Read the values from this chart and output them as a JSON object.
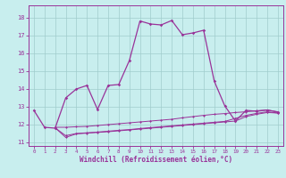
{
  "title": "",
  "xlabel": "Windchill (Refroidissement éolien,°C)",
  "ylabel": "",
  "bg_color": "#c8eeee",
  "grid_color": "#a0cccc",
  "line_color": "#993399",
  "xlim": [
    -0.5,
    23.5
  ],
  "ylim": [
    10.8,
    18.7
  ],
  "xticks": [
    0,
    1,
    2,
    3,
    4,
    5,
    6,
    7,
    8,
    9,
    10,
    11,
    12,
    13,
    14,
    15,
    16,
    17,
    18,
    19,
    20,
    21,
    22,
    23
  ],
  "yticks": [
    11,
    12,
    13,
    14,
    15,
    16,
    17,
    18
  ],
  "line1_x": [
    0,
    1,
    2,
    3,
    4,
    5,
    6,
    7,
    8,
    9,
    10,
    11,
    12,
    13,
    14,
    15,
    16,
    17,
    18,
    19,
    20,
    21,
    22,
    23
  ],
  "line1_y": [
    12.8,
    11.85,
    11.8,
    13.5,
    14.0,
    14.2,
    12.85,
    14.2,
    14.25,
    15.6,
    17.82,
    17.65,
    17.6,
    17.85,
    17.05,
    17.15,
    17.3,
    14.45,
    13.05,
    12.2,
    12.8,
    12.75,
    12.82,
    12.7
  ],
  "line2_x": [
    2,
    3,
    4,
    5,
    6,
    7,
    8,
    9,
    10,
    11,
    12,
    13,
    14,
    15,
    16,
    17,
    18,
    19,
    20,
    21,
    22,
    23
  ],
  "line2_y": [
    11.85,
    11.85,
    11.88,
    11.9,
    11.95,
    12.0,
    12.05,
    12.1,
    12.15,
    12.2,
    12.25,
    12.3,
    12.38,
    12.45,
    12.52,
    12.58,
    12.62,
    12.68,
    12.72,
    12.78,
    12.82,
    12.72
  ],
  "line3_x": [
    2,
    3,
    4,
    5,
    6,
    7,
    8,
    9,
    10,
    11,
    12,
    13,
    14,
    15,
    16,
    17,
    18,
    19,
    20,
    21,
    22,
    23
  ],
  "line3_y": [
    11.82,
    11.28,
    11.48,
    11.52,
    11.56,
    11.6,
    11.65,
    11.7,
    11.75,
    11.8,
    11.85,
    11.9,
    11.95,
    12.0,
    12.05,
    12.1,
    12.15,
    12.2,
    12.45,
    12.58,
    12.68,
    12.65
  ],
  "line4_x": [
    2,
    3,
    4,
    5,
    6,
    7,
    8,
    9,
    10,
    11,
    12,
    13,
    14,
    15,
    16,
    17,
    18,
    19,
    20,
    21,
    22,
    23
  ],
  "line4_y": [
    11.82,
    11.38,
    11.5,
    11.54,
    11.58,
    11.63,
    11.68,
    11.72,
    11.78,
    11.83,
    11.88,
    11.93,
    11.98,
    12.03,
    12.08,
    12.13,
    12.18,
    12.35,
    12.52,
    12.63,
    12.72,
    12.65
  ]
}
